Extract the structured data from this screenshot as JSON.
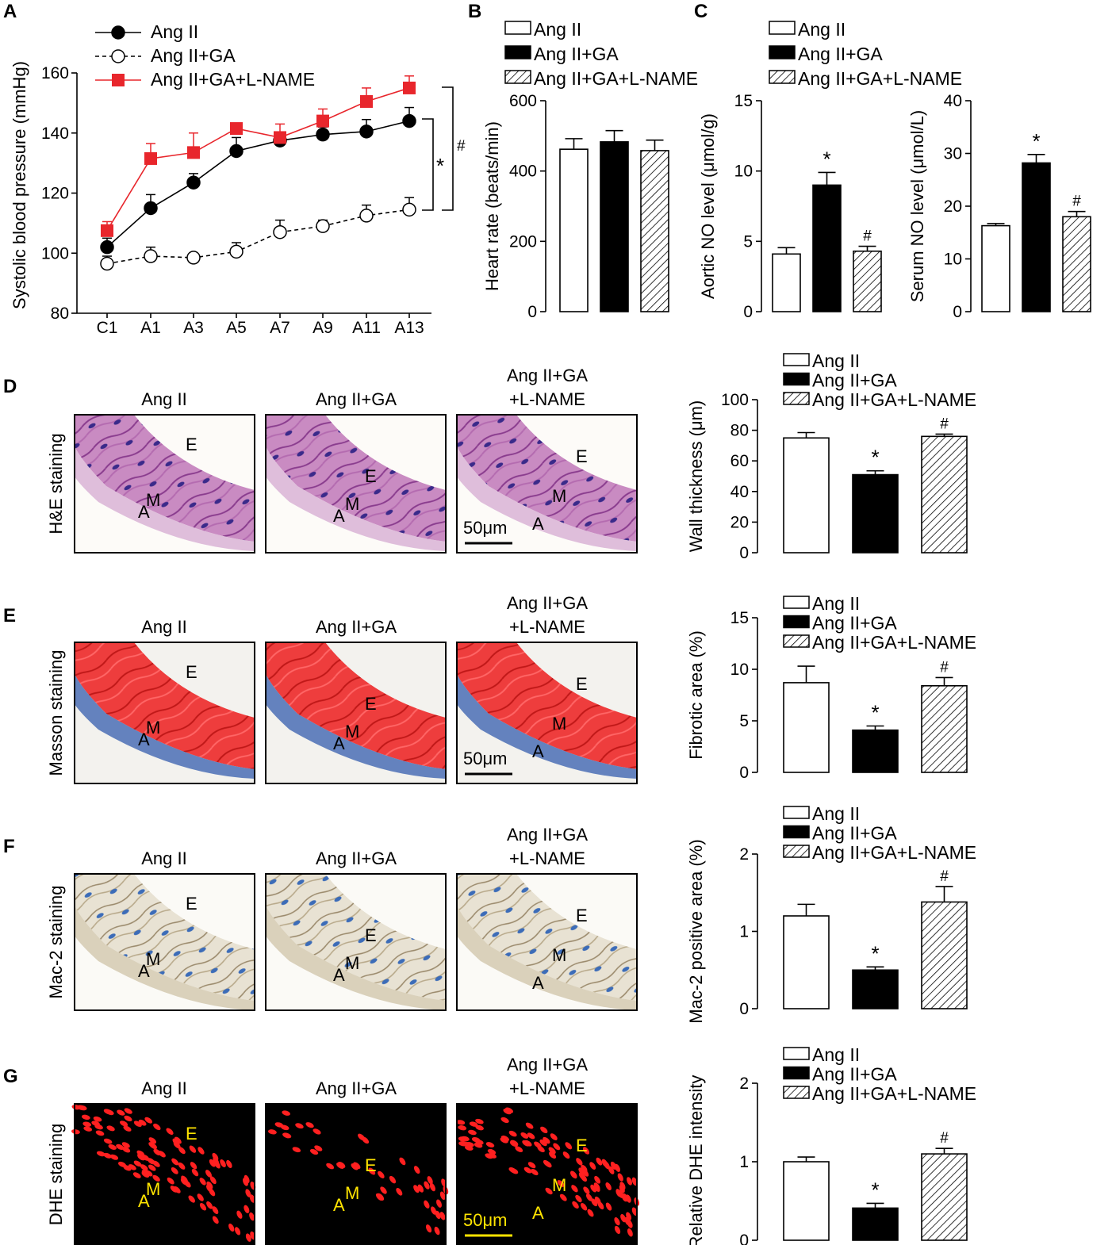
{
  "groups": [
    "Ang II",
    "Ang II+GA",
    "Ang II+GA+L-NAME"
  ],
  "colors": {
    "ang": "#000000",
    "ga_fill": "#ffffff",
    "lname": "#e8262c",
    "red_dhe": "#ff2020",
    "yellow": "#ffe400"
  },
  "image_panels": {
    "titles": [
      "Ang II",
      "Ang II+GA",
      "Ang II+GA",
      "+L-NAME"
    ],
    "letters": {
      "E": "E",
      "M": "M",
      "A": "A"
    },
    "scale_bar": "50μm",
    "rows": [
      {
        "panel": "D",
        "stain": "H&E staining",
        "kind": "he"
      },
      {
        "panel": "E",
        "stain": "Masson staining",
        "kind": "masson"
      },
      {
        "panel": "F",
        "stain": "Mac-2 staining",
        "kind": "mac2"
      },
      {
        "panel": "G",
        "stain": "DHE staining",
        "kind": "dhe"
      }
    ]
  },
  "chart_data": [
    {
      "panel": "A",
      "type": "line",
      "ylabel": "Systolic blood pressure (mmHg)",
      "ylim": [
        80,
        160
      ],
      "yticks": [
        80,
        100,
        120,
        140,
        160
      ],
      "categories": [
        "C1",
        "A1",
        "A3",
        "A5",
        "A7",
        "A9",
        "A11",
        "A13"
      ],
      "series": [
        {
          "name": "Ang II",
          "values": [
            102,
            115,
            123.5,
            134,
            137.5,
            139.5,
            140.5,
            144
          ],
          "errors": [
            3,
            4.5,
            3,
            4.5,
            2.5,
            2.5,
            4,
            4.5
          ]
        },
        {
          "name": "Ang II+GA",
          "values": [
            96.5,
            99,
            98.5,
            100.5,
            107,
            109,
            112.5,
            114.5
          ],
          "errors": [
            2.5,
            3,
            1.5,
            3,
            4,
            2,
            3.5,
            4
          ]
        },
        {
          "name": "Ang II+GA+L-NAME",
          "values": [
            107.5,
            131.5,
            133.5,
            141.5,
            138.5,
            144,
            150.5,
            155
          ],
          "errors": [
            3,
            5,
            6.5,
            1.5,
            4.5,
            4,
            4.5,
            4
          ]
        }
      ],
      "significance": [
        "*",
        "#"
      ]
    },
    {
      "panel": "B",
      "type": "bar",
      "ylabel": "Heart rate (beats/min)",
      "ylim": [
        0,
        600
      ],
      "yticks": [
        0,
        200,
        400,
        600
      ],
      "categories": [
        "Ang II",
        "Ang II+GA",
        "Ang II+GA+L-NAME"
      ],
      "values": [
        462,
        483,
        458
      ],
      "errors": [
        30,
        32,
        30
      ],
      "sig": [
        "",
        "",
        ""
      ]
    },
    {
      "panel": "C",
      "type": "bar",
      "ylabel": "Aortic NO level (μmol/g)",
      "ylim": [
        0,
        15
      ],
      "yticks": [
        0,
        5,
        10,
        15
      ],
      "categories": [
        "Ang II",
        "Ang II+GA",
        "Ang II+GA+L-NAME"
      ],
      "values": [
        4.1,
        9,
        4.3
      ],
      "errors": [
        0.45,
        0.9,
        0.35
      ],
      "sig": [
        "",
        "*",
        "#"
      ]
    },
    {
      "panel": "C",
      "type": "bar",
      "ylabel": "Serum NO level (μmol/L)",
      "ylim": [
        0,
        40
      ],
      "yticks": [
        0,
        10,
        20,
        30,
        40
      ],
      "categories": [
        "Ang II",
        "Ang II+GA",
        "Ang II+GA+L-NAME"
      ],
      "values": [
        16.3,
        28.2,
        18
      ],
      "errors": [
        0.4,
        1.6,
        1
      ],
      "sig": [
        "",
        "*",
        "#"
      ]
    },
    {
      "panel": "D",
      "type": "bar",
      "ylabel": "Wall thickness (μm)",
      "ylim": [
        0,
        100
      ],
      "yticks": [
        0,
        20,
        40,
        60,
        80,
        100
      ],
      "categories": [
        "Ang II",
        "Ang II+GA",
        "Ang II+GA+L-NAME"
      ],
      "values": [
        75,
        51,
        76
      ],
      "errors": [
        3.5,
        2.5,
        1.5
      ],
      "sig": [
        "",
        "*",
        "#"
      ]
    },
    {
      "panel": "E",
      "type": "bar",
      "ylabel": "Fibrotic area (%)",
      "ylim": [
        0,
        15
      ],
      "yticks": [
        0,
        5,
        10,
        15
      ],
      "categories": [
        "Ang II",
        "Ang II+GA",
        "Ang II+GA+L-NAME"
      ],
      "values": [
        8.7,
        4.1,
        8.4
      ],
      "errors": [
        1.6,
        0.4,
        0.8
      ],
      "sig": [
        "",
        "*",
        "#"
      ]
    },
    {
      "panel": "F",
      "type": "bar",
      "ylabel": "Mac-2 positive area (%)",
      "ylim": [
        0,
        2
      ],
      "yticks": [
        0,
        1,
        2
      ],
      "categories": [
        "Ang II",
        "Ang II+GA",
        "Ang II+GA+L-NAME"
      ],
      "values": [
        1.2,
        0.5,
        1.38
      ],
      "errors": [
        0.15,
        0.04,
        0.2
      ],
      "sig": [
        "",
        "*",
        "#"
      ]
    },
    {
      "panel": "G",
      "type": "bar",
      "ylabel": "Relative DHE intensity",
      "ylim": [
        0,
        2
      ],
      "yticks": [
        0,
        1,
        2
      ],
      "categories": [
        "Ang II",
        "Ang II+GA",
        "Ang II+GA+L-NAME"
      ],
      "values": [
        1,
        0.41,
        1.1
      ],
      "errors": [
        0.06,
        0.06,
        0.07
      ],
      "sig": [
        "",
        "*",
        "#"
      ]
    }
  ]
}
